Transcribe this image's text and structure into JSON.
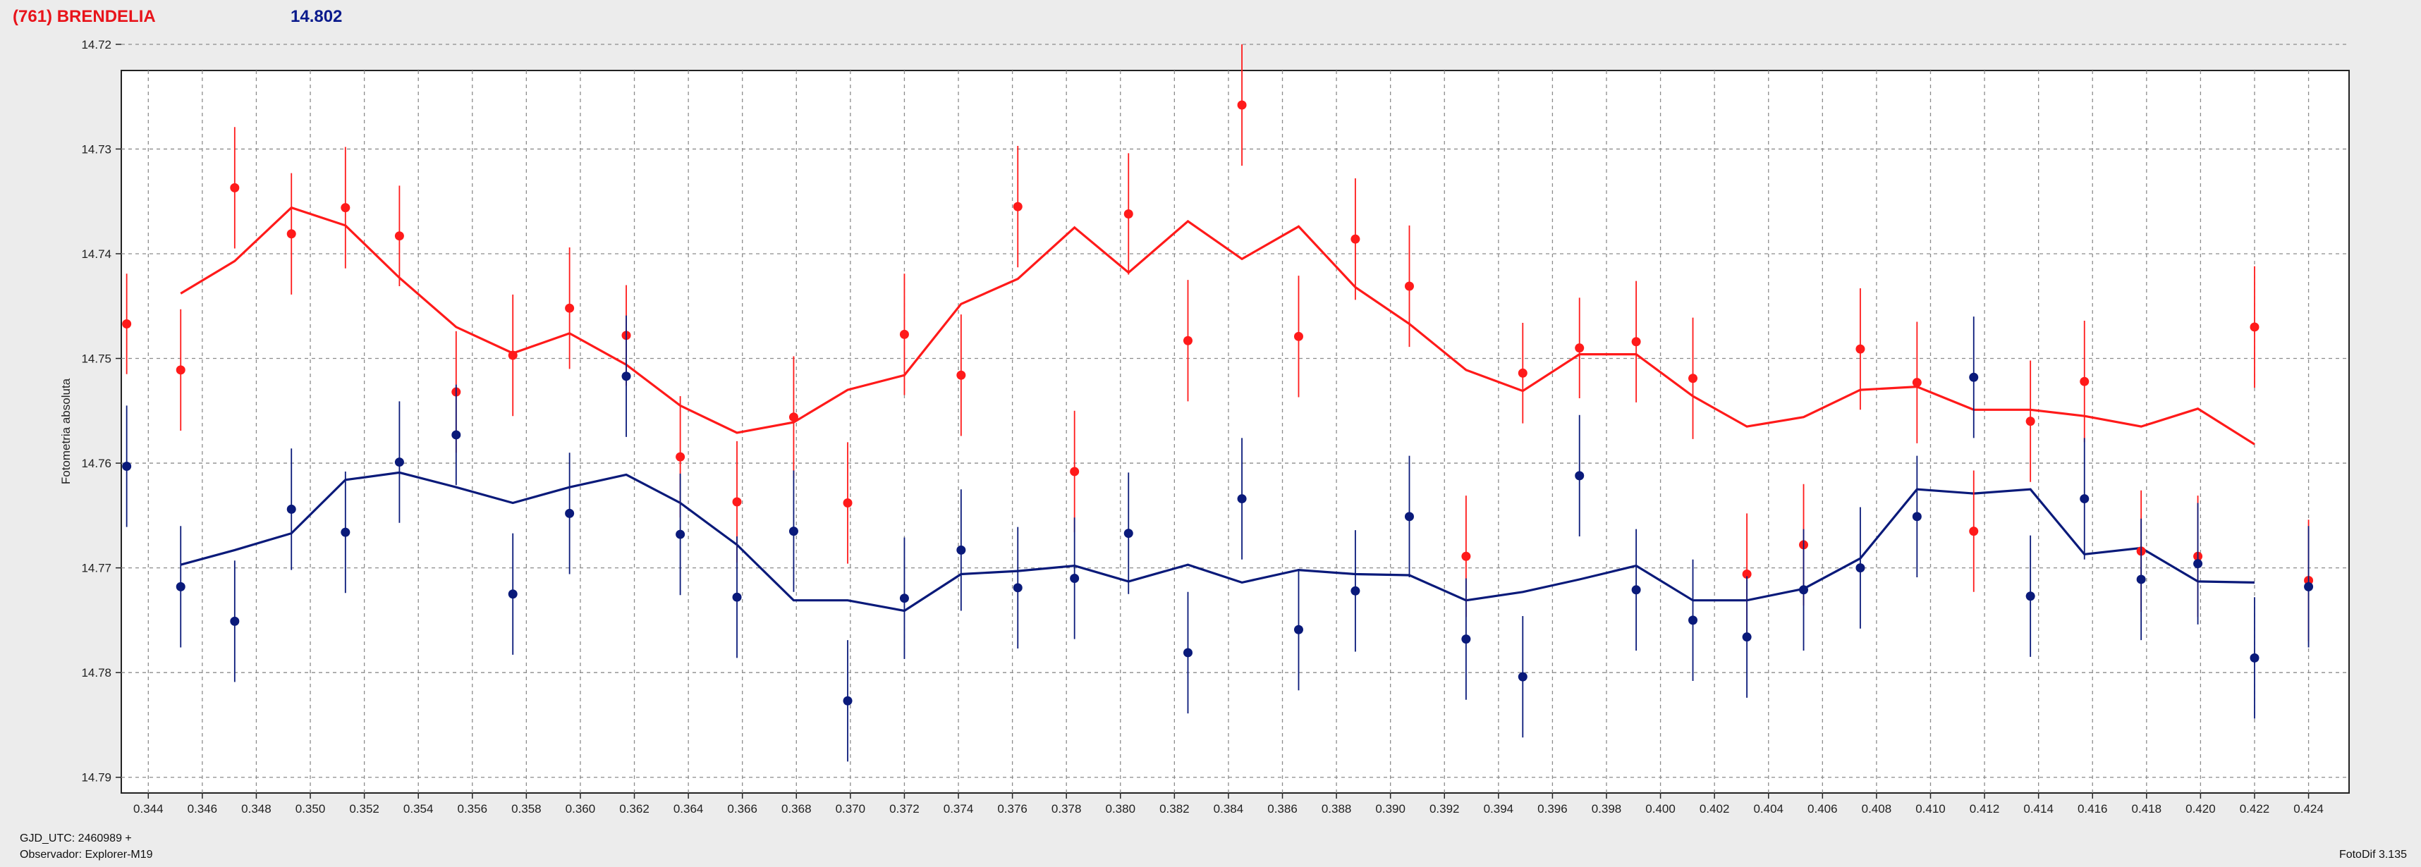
{
  "header": {
    "title": "(761) BRENDELIA",
    "magnitude": "14.802"
  },
  "footer": {
    "gjd": "GJD_UTC: 2460989 +",
    "observer": "Observador: Explorer-M19",
    "version": "FotoDif 3.135"
  },
  "colors": {
    "red": "#ff1a1a",
    "blue": "#0a1a7a",
    "background": "#ececec",
    "plot_background": "#ffffff",
    "grid": "#8c8c8c"
  },
  "chart_data": {
    "type": "scatter",
    "ylabel": "Fotometria absoluta",
    "xlabel": "",
    "xlim": [
      0.343,
      0.4255
    ],
    "ylim": [
      14.7225,
      14.7915
    ],
    "y_inverted": true,
    "grid": true,
    "x_ticks": [
      "0.344",
      "0.346",
      "0.348",
      "0.350",
      "0.352",
      "0.354",
      "0.356",
      "0.358",
      "0.360",
      "0.362",
      "0.364",
      "0.366",
      "0.368",
      "0.370",
      "0.372",
      "0.374",
      "0.376",
      "0.378",
      "0.380",
      "0.382",
      "0.384",
      "0.386",
      "0.388",
      "0.390",
      "0.392",
      "0.394",
      "0.396",
      "0.398",
      "0.400",
      "0.402",
      "0.404",
      "0.406",
      "0.408",
      "0.410",
      "0.412",
      "0.414",
      "0.416",
      "0.418",
      "0.420",
      "0.422",
      "0.424"
    ],
    "y_ticks": [
      "14.72",
      "14.73",
      "14.74",
      "14.75",
      "14.76",
      "14.77",
      "14.78",
      "14.79"
    ],
    "series": [
      {
        "color": "red",
        "points": [
          [
            0.3432,
            14.7467,
            0.0048
          ],
          [
            0.3452,
            14.7511,
            0.0058
          ],
          [
            0.3472,
            14.7337,
            0.0058
          ],
          [
            0.3493,
            14.7381,
            0.0058
          ],
          [
            0.3513,
            14.7356,
            0.0058
          ],
          [
            0.3533,
            14.7383,
            0.0048
          ],
          [
            0.3554,
            14.7532,
            0.0058
          ],
          [
            0.3575,
            14.7497,
            0.0058
          ],
          [
            0.3596,
            14.7452,
            0.0058
          ],
          [
            0.3617,
            14.7478,
            0.0048
          ],
          [
            0.3637,
            14.7594,
            0.0058
          ],
          [
            0.3658,
            14.7637,
            0.0058
          ],
          [
            0.3679,
            14.7556,
            0.0058
          ],
          [
            0.3699,
            14.7638,
            0.0058
          ],
          [
            0.372,
            14.7477,
            0.0058
          ],
          [
            0.3741,
            14.7516,
            0.0058
          ],
          [
            0.3762,
            14.7355,
            0.0058
          ],
          [
            0.3783,
            14.7608,
            0.0058
          ],
          [
            0.3803,
            14.7362,
            0.0058
          ],
          [
            0.3825,
            14.7483,
            0.0058
          ],
          [
            0.3845,
            14.7258,
            0.0058
          ],
          [
            0.3866,
            14.7479,
            0.0058
          ],
          [
            0.3887,
            14.7386,
            0.0058
          ],
          [
            0.3907,
            14.7431,
            0.0058
          ],
          [
            0.3928,
            14.7689,
            0.0058
          ],
          [
            0.3949,
            14.7514,
            0.0048
          ],
          [
            0.397,
            14.749,
            0.0048
          ],
          [
            0.3991,
            14.7484,
            0.0058
          ],
          [
            0.4012,
            14.7519,
            0.0058
          ],
          [
            0.4032,
            14.7706,
            0.0058
          ],
          [
            0.4053,
            14.7678,
            0.0058
          ],
          [
            0.4074,
            14.7491,
            0.0058
          ],
          [
            0.4095,
            14.7523,
            0.0058
          ],
          [
            0.4116,
            14.7665,
            0.0058
          ],
          [
            0.4137,
            14.756,
            0.0058
          ],
          [
            0.4157,
            14.7522,
            0.0058
          ],
          [
            0.4178,
            14.7684,
            0.0058
          ],
          [
            0.4199,
            14.7689,
            0.0058
          ],
          [
            0.422,
            14.747,
            0.0058
          ],
          [
            0.424,
            14.7712,
            0.0058
          ]
        ],
        "mean_line": [
          [
            0.3452,
            14.7438
          ],
          [
            0.3472,
            14.7407
          ],
          [
            0.3493,
            14.7356
          ],
          [
            0.3513,
            14.7373
          ],
          [
            0.3533,
            14.7423
          ],
          [
            0.3554,
            14.747
          ],
          [
            0.3575,
            14.7495
          ],
          [
            0.3596,
            14.7476
          ],
          [
            0.3617,
            14.7506
          ],
          [
            0.3637,
            14.7545
          ],
          [
            0.3658,
            14.7571
          ],
          [
            0.3679,
            14.7561
          ],
          [
            0.3699,
            14.753
          ],
          [
            0.372,
            14.7516
          ],
          [
            0.3741,
            14.7448
          ],
          [
            0.3762,
            14.7424
          ],
          [
            0.3783,
            14.7375
          ],
          [
            0.3803,
            14.7418
          ],
          [
            0.3825,
            14.7369
          ],
          [
            0.3845,
            14.7405
          ],
          [
            0.3866,
            14.7374
          ],
          [
            0.3887,
            14.7432
          ],
          [
            0.3907,
            14.7467
          ],
          [
            0.3928,
            14.7511
          ],
          [
            0.3949,
            14.7531
          ],
          [
            0.397,
            14.7496
          ],
          [
            0.3991,
            14.7496
          ],
          [
            0.4012,
            14.7536
          ],
          [
            0.4032,
            14.7565
          ],
          [
            0.4053,
            14.7556
          ],
          [
            0.4074,
            14.753
          ],
          [
            0.4095,
            14.7527
          ],
          [
            0.4116,
            14.7549
          ],
          [
            0.4137,
            14.7549
          ],
          [
            0.4157,
            14.7555
          ],
          [
            0.4178,
            14.7565
          ],
          [
            0.4199,
            14.7548
          ],
          [
            0.422,
            14.7582
          ]
        ]
      },
      {
        "color": "blue",
        "points": [
          [
            0.3432,
            14.7603,
            0.0058
          ],
          [
            0.3452,
            14.7718,
            0.0058
          ],
          [
            0.3472,
            14.7751,
            0.0058
          ],
          [
            0.3493,
            14.7644,
            0.0058
          ],
          [
            0.3513,
            14.7666,
            0.0058
          ],
          [
            0.3533,
            14.7599,
            0.0058
          ],
          [
            0.3554,
            14.7573,
            0.0048
          ],
          [
            0.3575,
            14.7725,
            0.0058
          ],
          [
            0.3596,
            14.7648,
            0.0058
          ],
          [
            0.3617,
            14.7517,
            0.0058
          ],
          [
            0.3637,
            14.7668,
            0.0058
          ],
          [
            0.3658,
            14.7728,
            0.0058
          ],
          [
            0.3679,
            14.7665,
            0.0058
          ],
          [
            0.3699,
            14.7827,
            0.0058
          ],
          [
            0.372,
            14.7729,
            0.0058
          ],
          [
            0.3741,
            14.7683,
            0.0058
          ],
          [
            0.3762,
            14.7719,
            0.0058
          ],
          [
            0.3783,
            14.771,
            0.0058
          ],
          [
            0.3803,
            14.7667,
            0.0058
          ],
          [
            0.3825,
            14.7781,
            0.0058
          ],
          [
            0.3845,
            14.7634,
            0.0058
          ],
          [
            0.3866,
            14.7759,
            0.0058
          ],
          [
            0.3887,
            14.7722,
            0.0058
          ],
          [
            0.3907,
            14.7651,
            0.0058
          ],
          [
            0.3928,
            14.7768,
            0.0058
          ],
          [
            0.3949,
            14.7804,
            0.0058
          ],
          [
            0.397,
            14.7612,
            0.0058
          ],
          [
            0.3991,
            14.7721,
            0.0058
          ],
          [
            0.4012,
            14.775,
            0.0058
          ],
          [
            0.4032,
            14.7766,
            0.0058
          ],
          [
            0.4053,
            14.7721,
            0.0058
          ],
          [
            0.4074,
            14.77,
            0.0058
          ],
          [
            0.4095,
            14.7651,
            0.0058
          ],
          [
            0.4116,
            14.7518,
            0.0058
          ],
          [
            0.4137,
            14.7727,
            0.0058
          ],
          [
            0.4157,
            14.7634,
            0.0058
          ],
          [
            0.4178,
            14.7711,
            0.0058
          ],
          [
            0.4199,
            14.7696,
            0.0058
          ],
          [
            0.422,
            14.7786,
            0.0058
          ],
          [
            0.424,
            14.7718,
            0.0058
          ]
        ],
        "mean_line": [
          [
            0.3452,
            14.7697
          ],
          [
            0.3472,
            14.7683
          ],
          [
            0.3493,
            14.7667
          ],
          [
            0.3513,
            14.7616
          ],
          [
            0.3533,
            14.7609
          ],
          [
            0.3554,
            14.7623
          ],
          [
            0.3575,
            14.7638
          ],
          [
            0.3596,
            14.7623
          ],
          [
            0.3617,
            14.7611
          ],
          [
            0.3637,
            14.7638
          ],
          [
            0.3658,
            14.7678
          ],
          [
            0.3679,
            14.7731
          ],
          [
            0.3699,
            14.7731
          ],
          [
            0.372,
            14.7741
          ],
          [
            0.3741,
            14.7706
          ],
          [
            0.3762,
            14.7703
          ],
          [
            0.3783,
            14.7698
          ],
          [
            0.3803,
            14.7713
          ],
          [
            0.3825,
            14.7697
          ],
          [
            0.3845,
            14.7714
          ],
          [
            0.3866,
            14.7702
          ],
          [
            0.3887,
            14.7706
          ],
          [
            0.3907,
            14.7707
          ],
          [
            0.3928,
            14.7731
          ],
          [
            0.3949,
            14.7723
          ],
          [
            0.397,
            14.7711
          ],
          [
            0.3991,
            14.7698
          ],
          [
            0.4012,
            14.7731
          ],
          [
            0.4032,
            14.7731
          ],
          [
            0.4053,
            14.772
          ],
          [
            0.4074,
            14.7691
          ],
          [
            0.4095,
            14.7625
          ],
          [
            0.4116,
            14.7629
          ],
          [
            0.4137,
            14.7625
          ],
          [
            0.4157,
            14.7687
          ],
          [
            0.4178,
            14.7681
          ],
          [
            0.4199,
            14.7713
          ],
          [
            0.422,
            14.7714
          ]
        ]
      }
    ]
  }
}
